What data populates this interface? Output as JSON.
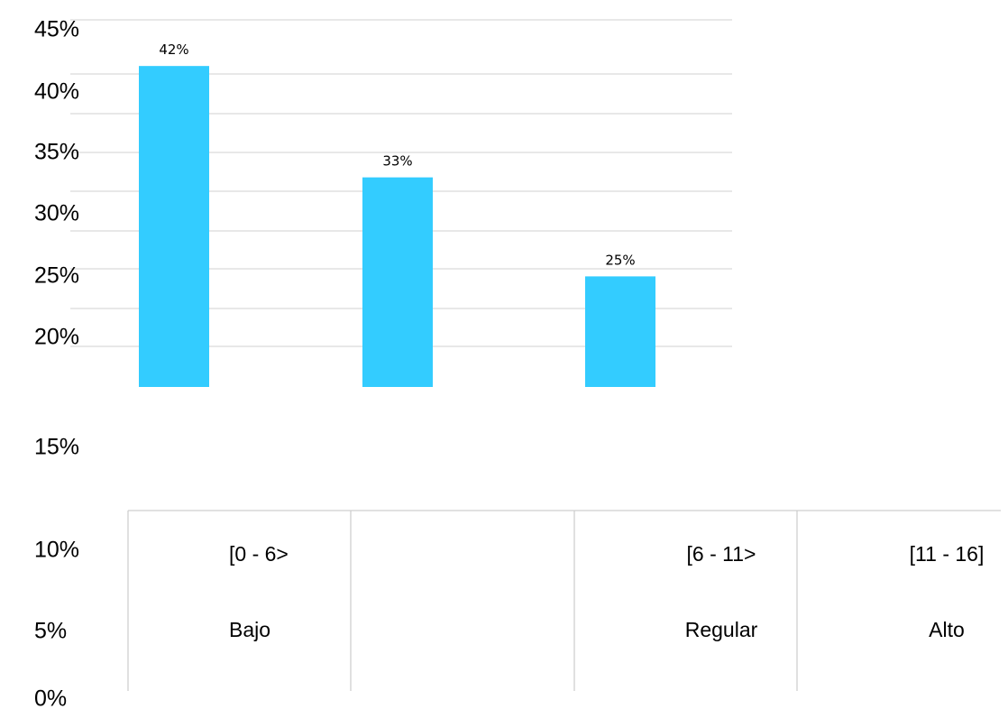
{
  "chart_data": {
    "type": "bar",
    "categories": [
      "[0 - 6>",
      "[6 - 11>",
      "[11 - 16]"
    ],
    "category_levels": [
      "Bajo",
      "Regular",
      "Alto"
    ],
    "values": [
      42,
      33,
      25
    ],
    "data_labels": [
      "42%",
      "33%",
      "25%"
    ],
    "y_ticks": [
      "45%",
      "40%",
      "35%",
      "30%",
      "25%",
      "20%",
      "15%",
      "10%",
      "5%",
      "0%"
    ],
    "title": "",
    "xlabel": "",
    "ylabel": "",
    "ylim": [
      0,
      45
    ],
    "grid": true,
    "legend": "none",
    "bar_color": "#33ccff"
  }
}
